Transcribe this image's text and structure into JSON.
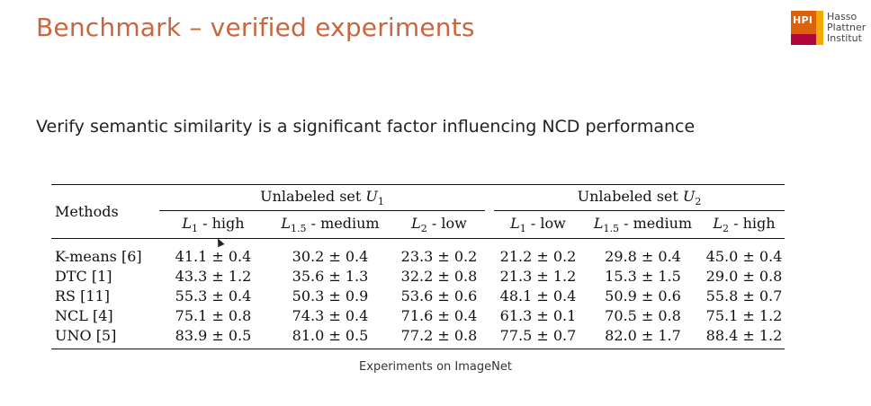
{
  "slide": {
    "title": "Benchmark – verified experiments",
    "subtitle": "Verify semantic similarity is a significant factor influencing NCD performance",
    "caption": "Experiments on ImageNet"
  },
  "logo": {
    "mark_text": "HPI",
    "lines": [
      "Hasso",
      "Plattner",
      "Institut"
    ],
    "colors": {
      "orange": "#dd6108",
      "yellow": "#f2a900",
      "red": "#b1063a"
    }
  },
  "colors": {
    "title": "#c8663f",
    "text": "#222222"
  },
  "table": {
    "methods_header": "Methods",
    "group_prefix": "Unlabeled set ",
    "groups": [
      {
        "var": "U",
        "sub": "1"
      },
      {
        "var": "U",
        "sub": "2"
      }
    ],
    "subheaders": [
      {
        "var": "L",
        "sub": "1",
        "suffix": " - high"
      },
      {
        "var": "L",
        "sub": "1.5",
        "suffix": " - medium"
      },
      {
        "var": "L",
        "sub": "2",
        "suffix": " - low"
      },
      {
        "var": "L",
        "sub": "1",
        "suffix": " - low"
      },
      {
        "var": "L",
        "sub": "1.5",
        "suffix": " - medium"
      },
      {
        "var": "L",
        "sub": "2",
        "suffix": " - high"
      }
    ],
    "rows": [
      {
        "method": "K-means [6]",
        "cells": [
          {
            "text": "41.1 ± 0.4",
            "bold": true
          },
          {
            "text": "30.2 ± 0.4",
            "bold": false
          },
          {
            "text": "23.3 ± 0.2",
            "bold": false
          },
          {
            "text": "21.2 ± 0.2",
            "bold": false
          },
          {
            "text": "29.8 ± 0.4",
            "bold": false
          },
          {
            "text": "45.0 ± 0.4",
            "bold": true
          }
        ]
      },
      {
        "method": "DTC [1]",
        "cells": [
          {
            "text": "43.3 ± 1.2",
            "bold": true
          },
          {
            "text": "35.6 ± 1.3",
            "bold": false
          },
          {
            "text": "32.2 ± 0.8",
            "bold": false
          },
          {
            "text": "21.3 ± 1.2",
            "bold": false
          },
          {
            "text": "15.3 ± 1.5",
            "bold": false
          },
          {
            "text": "29.0 ± 0.8",
            "bold": true
          }
        ]
      },
      {
        "method": "RS [11]",
        "cells": [
          {
            "text": "55.3 ± 0.4",
            "bold": true
          },
          {
            "text": "50.3 ± 0.9",
            "bold": false
          },
          {
            "text": "53.6 ± 0.6",
            "bold": false
          },
          {
            "text": "48.1 ± 0.4",
            "bold": false
          },
          {
            "text": "50.9 ± 0.6",
            "bold": false
          },
          {
            "text": "55.8 ± 0.7",
            "bold": true
          }
        ]
      },
      {
        "method": "NCL [4]",
        "cells": [
          {
            "text": "75.1 ± 0.8",
            "bold": true
          },
          {
            "text": "74.3 ± 0.4",
            "bold": false
          },
          {
            "text": "71.6 ± 0.4",
            "bold": false
          },
          {
            "text": "61.3 ± 0.1",
            "bold": false
          },
          {
            "text": "70.5 ± 0.8",
            "bold": false
          },
          {
            "text": "75.1 ± 1.2",
            "bold": true
          }
        ]
      },
      {
        "method": "UNO [5]",
        "cells": [
          {
            "text": "83.9 ± 0.5",
            "bold": true
          },
          {
            "text": "81.0 ± 0.5",
            "bold": false
          },
          {
            "text": "77.2 ± 0.8",
            "bold": false
          },
          {
            "text": "77.5 ± 0.7",
            "bold": false
          },
          {
            "text": "82.0 ± 1.7",
            "bold": false
          },
          {
            "text": "88.4 ± 1.2",
            "bold": true
          }
        ]
      }
    ]
  }
}
